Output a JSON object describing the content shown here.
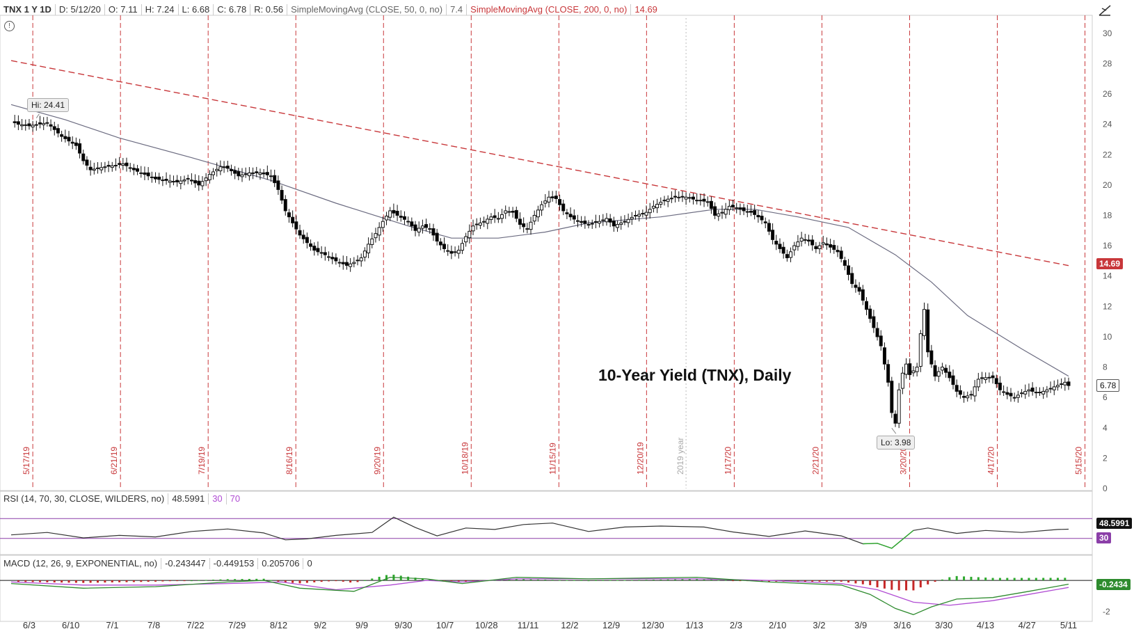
{
  "header": {
    "symbol": "TNX 1 Y 1D",
    "date": "D: 5/12/20",
    "open": "O: 7.11",
    "high": "H: 7.24",
    "low": "L: 6.68",
    "close": "C: 6.78",
    "range": "R: 0.56",
    "sma50_label": "SimpleMovingAvg (CLOSE, 50, 0, no)",
    "sma50_value": "7.4",
    "sma200_label": "SimpleMovingAvg (CLOSE, 200, 0, no)",
    "sma200_value": "14.69"
  },
  "annotations": {
    "high": "Hi: 24.41",
    "low": "Lo: 3.98",
    "title": "10-Year Yield (TNX), Daily",
    "year_marker": "2019 year",
    "last_price": "6.78",
    "sma200_badge": "14.69"
  },
  "rsi_header": {
    "label": "RSI (14, 70, 30, CLOSE, WILDERS, no)",
    "value": "48.5991",
    "oversold": "30",
    "overbought": "70",
    "badge_value": "48.5991",
    "badge_os": "30"
  },
  "macd_header": {
    "label": "MACD (12, 26, 9, EXPONENTIAL, no)",
    "value": "-0.243447",
    "avg": "-0.449153",
    "diff": "0.205706",
    "zero": "0",
    "badge": "-0.2434"
  },
  "colors": {
    "up": "#ffffff",
    "down": "#000000",
    "sma50": "#6b6b80",
    "sma200": "#c8373a",
    "vline": "#c8373a",
    "rsi_line": "#333333",
    "rsi_band": "#8b3fa8",
    "macd_value": "#2e8b2e",
    "macd_avg": "#b04bd3",
    "hist_pos": "#2ea82e",
    "hist_neg": "#c62828"
  },
  "chart_data": [
    {
      "type": "candlestick",
      "title": "10-Year Yield (TNX), Daily",
      "ylim": [
        0,
        31
      ],
      "yticks": [
        2,
        4,
        6,
        8,
        10,
        12,
        14,
        16,
        18,
        20,
        22,
        24,
        26,
        28,
        30
      ],
      "ytick_bottom": "0",
      "xticks": [
        "6/3",
        "6/10",
        "7/1",
        "7/8",
        "7/22",
        "7/29",
        "8/12",
        "9/2",
        "9/9",
        "9/30",
        "10/7",
        "10/28",
        "11/11",
        "12/2",
        "12/9",
        "12/30",
        "1/13",
        "2/3",
        "2/10",
        "3/2",
        "3/9",
        "3/16",
        "3/30",
        "4/13",
        "4/27",
        "5/11"
      ],
      "expiration_dates": [
        "5/17/19",
        "6/21/19",
        "7/19/19",
        "8/16/19",
        "9/20/19",
        "10/18/19",
        "11/15/19",
        "12/20/19",
        "1/17/20",
        "2/21/20",
        "3/20/20",
        "4/17/20",
        "5/15/20"
      ],
      "close_path": [
        [
          0,
          24.2
        ],
        [
          2,
          24.0
        ],
        [
          5,
          23.9
        ],
        [
          10,
          24.1
        ],
        [
          14,
          23.2
        ],
        [
          18,
          22.6
        ],
        [
          20,
          21.6
        ],
        [
          22,
          21.0
        ],
        [
          26,
          21.2
        ],
        [
          29,
          21.3
        ],
        [
          31,
          21.4
        ],
        [
          34,
          21.0
        ],
        [
          38,
          20.6
        ],
        [
          40,
          20.4
        ],
        [
          43,
          20.3
        ],
        [
          46,
          20.2
        ],
        [
          49,
          20.4
        ],
        [
          52,
          20.0
        ],
        [
          55,
          20.7
        ],
        [
          58,
          21.2
        ],
        [
          60,
          21.1
        ],
        [
          63,
          20.6
        ],
        [
          66,
          20.8
        ],
        [
          69,
          20.8
        ],
        [
          72,
          20.6
        ],
        [
          74,
          19.7
        ],
        [
          76,
          18.3
        ],
        [
          78,
          17.5
        ],
        [
          80,
          16.7
        ],
        [
          82,
          16.2
        ],
        [
          84,
          15.7
        ],
        [
          87,
          15.4
        ],
        [
          90,
          15.0
        ],
        [
          93,
          14.7
        ],
        [
          95,
          14.9
        ],
        [
          97,
          15.2
        ],
        [
          99,
          16.1
        ],
        [
          101,
          16.8
        ],
        [
          103,
          17.6
        ],
        [
          105,
          18.3
        ],
        [
          107,
          18.0
        ],
        [
          110,
          17.6
        ],
        [
          112,
          17.0
        ],
        [
          114,
          17.3
        ],
        [
          116,
          17.1
        ],
        [
          118,
          16.3
        ],
        [
          120,
          15.8
        ],
        [
          122,
          15.5
        ],
        [
          124,
          15.7
        ],
        [
          126,
          16.6
        ],
        [
          128,
          17.3
        ],
        [
          131,
          17.6
        ],
        [
          133,
          17.9
        ],
        [
          135,
          17.8
        ],
        [
          137,
          18.3
        ],
        [
          139,
          18.2
        ],
        [
          141,
          17.4
        ],
        [
          143,
          17.1
        ],
        [
          145,
          18.0
        ],
        [
          147,
          18.7
        ],
        [
          149,
          19.2
        ],
        [
          151,
          19.1
        ],
        [
          153,
          18.3
        ],
        [
          155,
          17.9
        ],
        [
          157,
          17.6
        ],
        [
          160,
          17.4
        ],
        [
          163,
          17.6
        ],
        [
          165,
          17.8
        ],
        [
          167,
          17.3
        ],
        [
          170,
          17.6
        ],
        [
          173,
          18.0
        ],
        [
          176,
          18.2
        ],
        [
          178,
          18.6
        ],
        [
          181,
          19.0
        ],
        [
          184,
          19.2
        ],
        [
          187,
          19.2
        ],
        [
          190,
          19.0
        ],
        [
          193,
          18.9
        ],
        [
          195,
          18.0
        ],
        [
          197,
          18.2
        ],
        [
          199,
          18.6
        ],
        [
          201,
          18.5
        ],
        [
          203,
          18.3
        ],
        [
          205,
          18.2
        ],
        [
          207,
          17.9
        ],
        [
          209,
          17.5
        ],
        [
          211,
          16.4
        ],
        [
          213,
          15.8
        ],
        [
          215,
          15.2
        ],
        [
          217,
          16.0
        ],
        [
          219,
          16.5
        ],
        [
          221,
          16.3
        ],
        [
          223,
          15.8
        ],
        [
          225,
          16.2
        ],
        [
          227,
          15.9
        ],
        [
          229,
          15.6
        ],
        [
          231,
          14.7
        ],
        [
          233,
          13.5
        ],
        [
          235,
          13.0
        ],
        [
          237,
          11.8
        ],
        [
          239,
          10.6
        ],
        [
          241,
          9.4
        ],
        [
          243,
          7.0
        ],
        [
          244,
          5.0
        ],
        [
          245,
          4.3
        ],
        [
          246,
          6.5
        ],
        [
          247,
          7.6
        ],
        [
          248,
          8.2
        ],
        [
          249,
          7.5
        ],
        [
          251,
          8.0
        ],
        [
          252,
          10.2
        ],
        [
          253,
          11.8
        ],
        [
          254,
          9.0
        ],
        [
          256,
          7.4
        ],
        [
          258,
          8.0
        ],
        [
          260,
          7.3
        ],
        [
          262,
          6.4
        ],
        [
          264,
          6.0
        ],
        [
          266,
          6.2
        ],
        [
          268,
          7.2
        ],
        [
          270,
          7.3
        ],
        [
          272,
          7.3
        ],
        [
          274,
          6.5
        ],
        [
          276,
          6.2
        ],
        [
          278,
          6.0
        ],
        [
          280,
          6.3
        ],
        [
          282,
          6.5
        ],
        [
          284,
          6.3
        ],
        [
          286,
          6.4
        ],
        [
          288,
          6.6
        ],
        [
          290,
          6.8
        ],
        [
          292,
          7.0
        ],
        [
          293,
          6.78
        ]
      ],
      "sma50_path": [
        [
          0,
          25.3
        ],
        [
          15,
          24.3
        ],
        [
          30,
          23.1
        ],
        [
          50,
          21.8
        ],
        [
          72,
          20.3
        ],
        [
          90,
          18.8
        ],
        [
          110,
          17.3
        ],
        [
          122,
          16.5
        ],
        [
          135,
          16.5
        ],
        [
          148,
          16.9
        ],
        [
          160,
          17.5
        ],
        [
          180,
          17.9
        ],
        [
          195,
          18.4
        ],
        [
          206,
          18.4
        ],
        [
          218,
          17.9
        ],
        [
          232,
          17.2
        ],
        [
          245,
          15.4
        ],
        [
          255,
          13.6
        ],
        [
          265,
          11.4
        ],
        [
          280,
          9.2
        ],
        [
          293,
          7.4
        ]
      ],
      "sma200_path": [
        [
          0,
          28.2
        ],
        [
          293,
          14.69
        ]
      ],
      "high_annotation": {
        "x": 7,
        "y": 24.41
      },
      "low_annotation": {
        "x": 244,
        "y": 3.98
      }
    },
    {
      "type": "line",
      "title": "RSI (14, 70, 30, CLOSE, WILDERS, no)",
      "ylim": [
        0,
        100
      ],
      "bands": [
        30,
        70
      ],
      "rsi_path": [
        [
          0,
          37
        ],
        [
          10,
          42
        ],
        [
          20,
          31
        ],
        [
          30,
          36
        ],
        [
          40,
          33
        ],
        [
          50,
          44
        ],
        [
          60,
          49
        ],
        [
          70,
          41
        ],
        [
          76,
          27
        ],
        [
          82,
          29
        ],
        [
          90,
          36
        ],
        [
          100,
          42
        ],
        [
          106,
          73
        ],
        [
          112,
          52
        ],
        [
          118,
          35
        ],
        [
          126,
          51
        ],
        [
          134,
          48
        ],
        [
          142,
          58
        ],
        [
          150,
          61
        ],
        [
          160,
          44
        ],
        [
          170,
          53
        ],
        [
          180,
          55
        ],
        [
          192,
          53
        ],
        [
          200,
          43
        ],
        [
          210,
          34
        ],
        [
          220,
          45
        ],
        [
          230,
          35
        ],
        [
          236,
          19
        ],
        [
          240,
          20
        ],
        [
          244,
          10
        ],
        [
          250,
          46
        ],
        [
          254,
          51
        ],
        [
          262,
          40
        ],
        [
          270,
          46
        ],
        [
          280,
          42
        ],
        [
          290,
          48
        ],
        [
          293,
          48.6
        ]
      ]
    },
    {
      "type": "bar",
      "title": "MACD (12, 26, 9, EXPONENTIAL, no)",
      "ylim": [
        -2.5,
        0.9
      ],
      "yticks": [
        -2
      ],
      "macd_value_path": [
        [
          0,
          -0.2
        ],
        [
          20,
          -0.5
        ],
        [
          40,
          -0.4
        ],
        [
          60,
          -0.1
        ],
        [
          70,
          0.0
        ],
        [
          80,
          -0.5
        ],
        [
          95,
          -0.7
        ],
        [
          105,
          0.2
        ],
        [
          115,
          0.1
        ],
        [
          125,
          -0.2
        ],
        [
          140,
          0.2
        ],
        [
          160,
          0.1
        ],
        [
          190,
          0.2
        ],
        [
          210,
          -0.1
        ],
        [
          230,
          -0.3
        ],
        [
          238,
          -0.9
        ],
        [
          245,
          -1.8
        ],
        [
          250,
          -2.2
        ],
        [
          255,
          -1.7
        ],
        [
          262,
          -1.2
        ],
        [
          272,
          -1.1
        ],
        [
          282,
          -0.7
        ],
        [
          293,
          -0.24
        ]
      ],
      "macd_avg_path": [
        [
          0,
          -0.1
        ],
        [
          20,
          -0.3
        ],
        [
          40,
          -0.3
        ],
        [
          60,
          -0.2
        ],
        [
          75,
          -0.1
        ],
        [
          90,
          -0.6
        ],
        [
          105,
          -0.3
        ],
        [
          115,
          0.0
        ],
        [
          125,
          -0.1
        ],
        [
          140,
          0.1
        ],
        [
          160,
          0.1
        ],
        [
          190,
          0.1
        ],
        [
          210,
          0.0
        ],
        [
          230,
          -0.2
        ],
        [
          240,
          -0.6
        ],
        [
          250,
          -1.4
        ],
        [
          260,
          -1.6
        ],
        [
          272,
          -1.3
        ],
        [
          282,
          -0.9
        ],
        [
          293,
          -0.45
        ]
      ]
    }
  ]
}
